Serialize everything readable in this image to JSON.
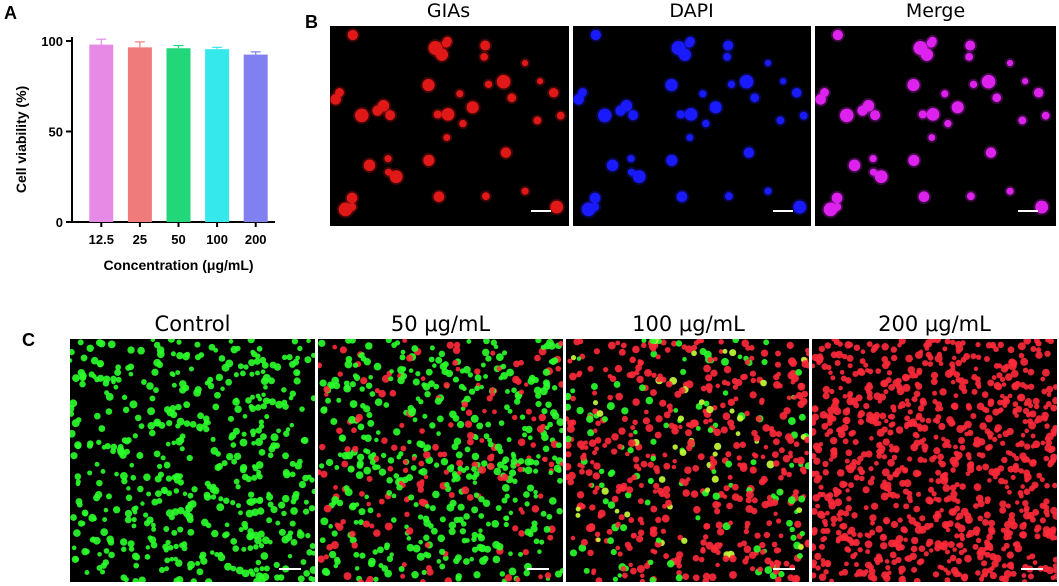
{
  "panels": {
    "a": {
      "letter": "A"
    },
    "b": {
      "letter": "B",
      "titles": [
        "GIAs",
        "DAPI",
        "Merge"
      ]
    },
    "c": {
      "letter": "C",
      "titles": [
        "Control",
        "50 μg/mL",
        "100 μg/mL",
        "200 μg/mL"
      ]
    }
  },
  "chart_data": {
    "type": "bar",
    "categories": [
      "12.5",
      "25",
      "50",
      "100",
      "200"
    ],
    "values": [
      98,
      96.5,
      96,
      95.5,
      92.5
    ],
    "errors": [
      3,
      3,
      1.5,
      1,
      1.5
    ],
    "colors": [
      "#e68ae6",
      "#f07b7b",
      "#22d67a",
      "#35e8ec",
      "#8080f0"
    ],
    "xlabel": "Concentration (μg/mL)",
    "ylabel": "Cell viability (%)",
    "ylim": [
      0,
      100
    ],
    "yticks": [
      0,
      50,
      100
    ],
    "grid": false
  },
  "micrographs": {
    "b_colors": [
      "#e01818",
      "#1a1aff",
      "#dd22ee"
    ],
    "c_mixes": [
      0.0,
      0.3,
      0.75,
      1.0
    ]
  }
}
